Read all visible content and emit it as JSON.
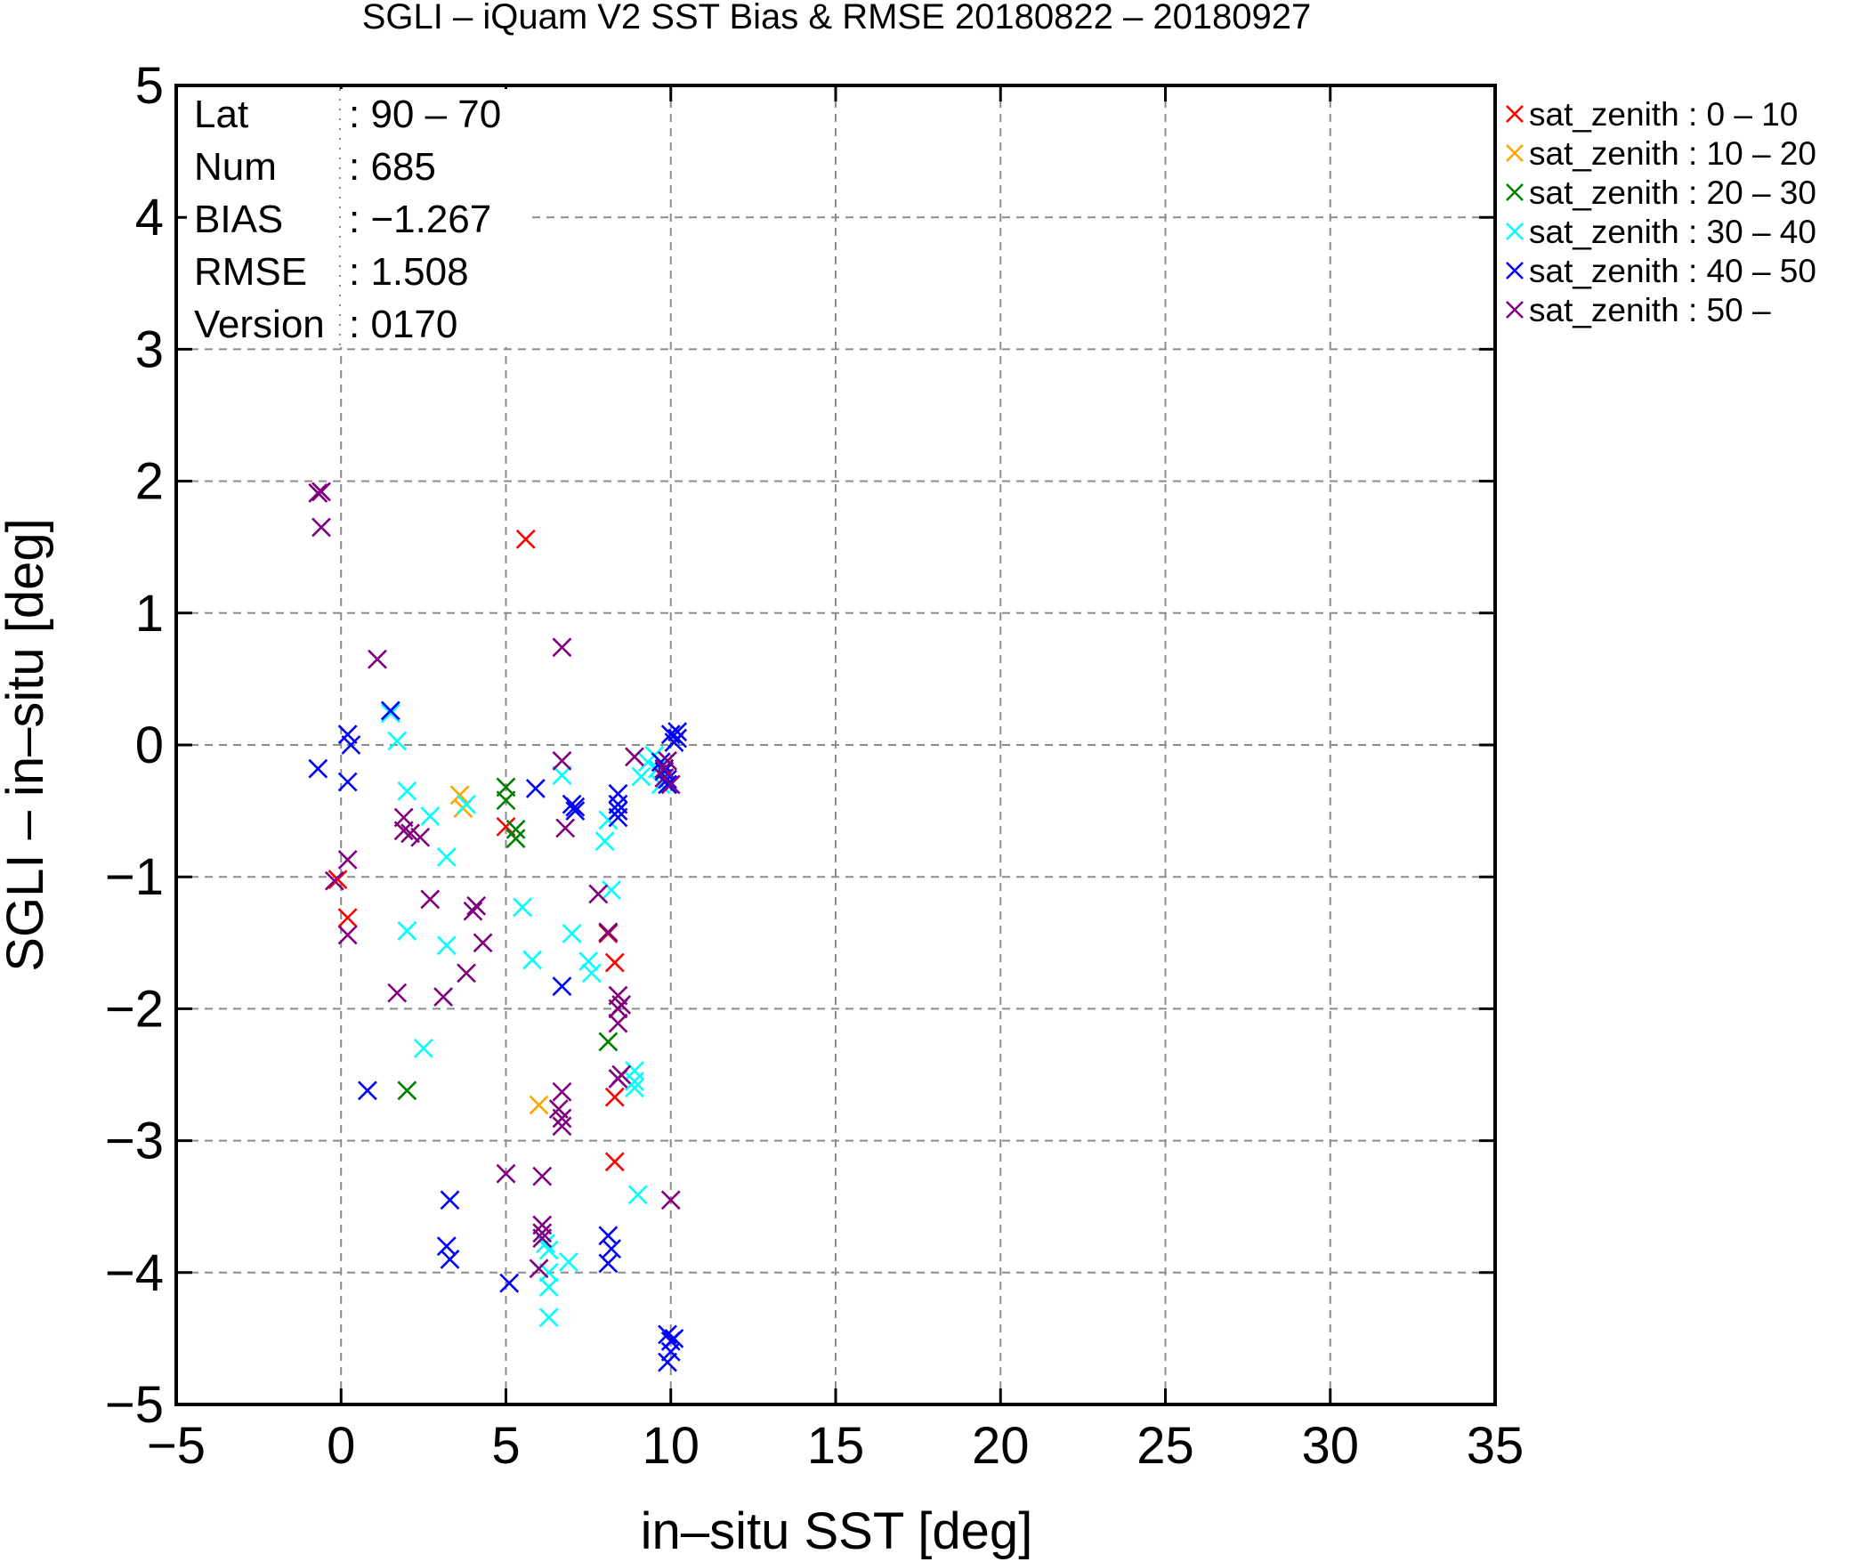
{
  "chart_data": {
    "type": "scatter",
    "title": "SGLI – iQuam V2 SST Bias & RMSE 20180822 – 20180927",
    "xlabel": "in–situ SST [deg]",
    "ylabel": "SGLI – in–situ [deg]",
    "xlim": [
      -5,
      35
    ],
    "ylim": [
      -5,
      5
    ],
    "xticks": [
      -5,
      0,
      5,
      10,
      15,
      20,
      25,
      30,
      35
    ],
    "yticks": [
      -5,
      -4,
      -3,
      -2,
      -1,
      0,
      1,
      2,
      3,
      4,
      5
    ],
    "xtick_labels": [
      "−5",
      "0",
      "5",
      "10",
      "15",
      "20",
      "25",
      "30",
      "35"
    ],
    "ytick_labels": [
      "−5",
      "−4",
      "−3",
      "−2",
      "−1",
      "0",
      "1",
      "2",
      "3",
      "4",
      "5"
    ],
    "grid": true,
    "legend_position": "outside-right-top",
    "stats": [
      {
        "key": "Lat",
        "value": ": 90 – 70"
      },
      {
        "key": "Num",
        "value": ": 685"
      },
      {
        "key": "BIAS",
        "value": ": −1.267"
      },
      {
        "key": "RMSE",
        "value": ": 1.508"
      },
      {
        "key": "Version",
        "value": ": 0170"
      }
    ],
    "series": [
      {
        "name": "sat_zenith :  0 – 10",
        "color": "#ff0000",
        "points": [
          [
            -0.1,
            -1.02
          ],
          [
            0.2,
            -1.31
          ],
          [
            5.0,
            -0.62
          ],
          [
            5.6,
            1.56
          ],
          [
            8.1,
            -1.43
          ],
          [
            8.3,
            -1.65
          ],
          [
            8.3,
            -2.67
          ],
          [
            8.3,
            -3.16
          ]
        ]
      },
      {
        "name": "sat_zenith : 10 – 20",
        "color": "#ffa500",
        "points": [
          [
            3.6,
            -0.38
          ],
          [
            3.7,
            -0.48
          ],
          [
            6.0,
            -2.73
          ]
        ]
      },
      {
        "name": "sat_zenith : 20 – 30",
        "color": "#008000",
        "points": [
          [
            5.0,
            -0.32
          ],
          [
            5.0,
            -0.42
          ],
          [
            5.3,
            -0.64
          ],
          [
            5.3,
            -0.71
          ],
          [
            8.1,
            -2.25
          ],
          [
            2.0,
            -2.62
          ],
          [
            8.1,
            -1.42
          ]
        ]
      },
      {
        "name": "sat_zenith : 30 – 40",
        "color": "#00ffff",
        "points": [
          [
            1.5,
            0.24
          ],
          [
            1.7,
            0.03
          ],
          [
            2.0,
            -0.35
          ],
          [
            2.7,
            -0.54
          ],
          [
            3.2,
            -0.85
          ],
          [
            3.8,
            -0.45
          ],
          [
            2.0,
            -1.41
          ],
          [
            3.2,
            -1.52
          ],
          [
            2.5,
            -2.3
          ],
          [
            5.5,
            -1.23
          ],
          [
            5.8,
            -1.63
          ],
          [
            6.7,
            -0.23
          ],
          [
            7.0,
            -1.43
          ],
          [
            7.5,
            -1.64
          ],
          [
            7.6,
            -1.73
          ],
          [
            8.0,
            -0.73
          ],
          [
            8.1,
            -0.57
          ],
          [
            8.2,
            -1.1
          ],
          [
            8.9,
            -2.47
          ],
          [
            8.9,
            -2.55
          ],
          [
            8.9,
            -2.6
          ],
          [
            9.0,
            -3.41
          ],
          [
            6.2,
            -3.78
          ],
          [
            6.3,
            -3.83
          ],
          [
            6.3,
            -4.0
          ],
          [
            6.3,
            -4.11
          ],
          [
            6.3,
            -4.34
          ],
          [
            6.9,
            -3.92
          ],
          [
            9.1,
            -0.24
          ],
          [
            9.3,
            -0.13
          ],
          [
            9.5,
            -0.08
          ],
          [
            9.6,
            -0.18
          ],
          [
            9.7,
            -0.3
          ]
        ]
      },
      {
        "name": "sat_zenith : 40 – 50",
        "color": "#0000ff",
        "points": [
          [
            -0.7,
            -0.18
          ],
          [
            0.2,
            0.08
          ],
          [
            0.3,
            0.0
          ],
          [
            0.2,
            -0.28
          ],
          [
            0.8,
            -2.62
          ],
          [
            1.5,
            0.26
          ],
          [
            3.3,
            -3.45
          ],
          [
            3.2,
            -3.8
          ],
          [
            3.3,
            -3.9
          ],
          [
            5.1,
            -4.08
          ],
          [
            5.9,
            -0.33
          ],
          [
            6.7,
            -1.83
          ],
          [
            7.0,
            -0.45
          ],
          [
            7.1,
            -0.47
          ],
          [
            7.1,
            -0.5
          ],
          [
            8.4,
            -0.37
          ],
          [
            8.4,
            -0.45
          ],
          [
            8.4,
            -0.5
          ],
          [
            8.4,
            -0.55
          ],
          [
            8.1,
            -3.72
          ],
          [
            8.2,
            -3.82
          ],
          [
            8.1,
            -3.93
          ],
          [
            9.7,
            -0.13
          ],
          [
            9.8,
            -0.2
          ],
          [
            9.9,
            -0.26
          ],
          [
            9.9,
            -0.3
          ],
          [
            10.0,
            0.08
          ],
          [
            10.1,
            0.02
          ],
          [
            10.2,
            0.1
          ],
          [
            10.2,
            0.05
          ],
          [
            9.9,
            -4.47
          ],
          [
            10.0,
            -4.52
          ],
          [
            10.0,
            -4.6
          ],
          [
            9.9,
            -4.68
          ],
          [
            10.1,
            -4.5
          ]
        ]
      },
      {
        "name": "sat_zenith : 50 –",
        "color": "#800080",
        "points": [
          [
            -0.7,
            1.91
          ],
          [
            -0.6,
            1.92
          ],
          [
            -0.6,
            1.65
          ],
          [
            -0.2,
            -1.03
          ],
          [
            0.2,
            -0.87
          ],
          [
            0.2,
            -1.44
          ],
          [
            1.1,
            0.65
          ],
          [
            1.7,
            -1.88
          ],
          [
            1.9,
            -0.55
          ],
          [
            1.9,
            -0.65
          ],
          [
            2.1,
            -0.67
          ],
          [
            2.4,
            -0.7
          ],
          [
            2.7,
            -1.17
          ],
          [
            3.1,
            -1.91
          ],
          [
            4.0,
            -1.26
          ],
          [
            4.1,
            -1.22
          ],
          [
            4.3,
            -1.5
          ],
          [
            3.8,
            -1.73
          ],
          [
            5.0,
            -3.25
          ],
          [
            6.1,
            -3.27
          ],
          [
            6.1,
            -3.64
          ],
          [
            6.1,
            -3.7
          ],
          [
            6.1,
            -3.74
          ],
          [
            6.0,
            -3.97
          ],
          [
            6.6,
            -2.76
          ],
          [
            6.7,
            -2.63
          ],
          [
            6.7,
            -2.83
          ],
          [
            6.7,
            -2.89
          ],
          [
            6.7,
            0.74
          ],
          [
            6.7,
            -0.12
          ],
          [
            6.8,
            -0.63
          ],
          [
            7.8,
            -1.13
          ],
          [
            8.1,
            -1.42
          ],
          [
            8.4,
            -1.9
          ],
          [
            8.4,
            -2.0
          ],
          [
            8.4,
            -2.11
          ],
          [
            8.5,
            -1.97
          ],
          [
            8.4,
            -2.53
          ],
          [
            8.5,
            -2.5
          ],
          [
            8.9,
            -0.09
          ],
          [
            9.8,
            -0.18
          ],
          [
            9.8,
            -0.25
          ],
          [
            9.9,
            -0.12
          ],
          [
            10.0,
            -3.45
          ],
          [
            10.0,
            -0.3
          ]
        ]
      }
    ]
  }
}
